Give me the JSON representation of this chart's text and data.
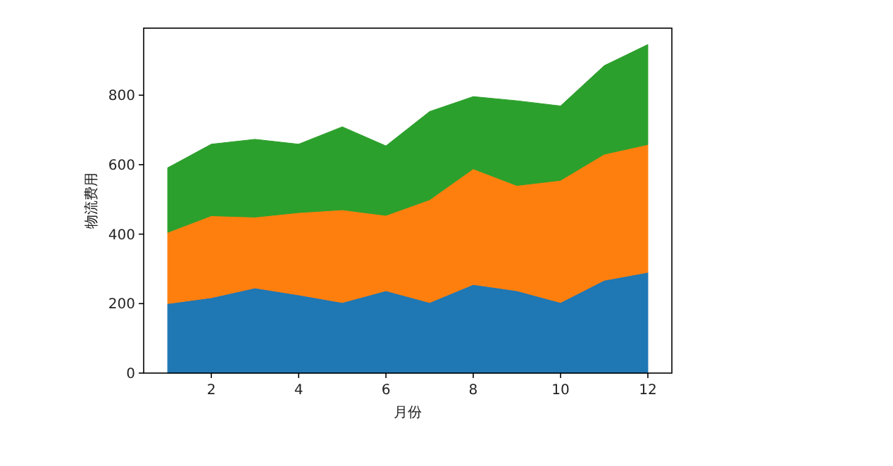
{
  "chart_data": {
    "type": "area",
    "stacked": true,
    "xlabel": "月份",
    "ylabel": "物流费用",
    "x": [
      1,
      2,
      3,
      4,
      5,
      6,
      7,
      8,
      9,
      10,
      11,
      12
    ],
    "series": [
      {
        "color": "#1f77b4",
        "values": [
          200,
          217,
          245,
          225,
          203,
          237,
          203,
          255,
          237,
          203,
          267,
          290
        ]
      },
      {
        "color": "#ff7f0e",
        "values": [
          205,
          236,
          204,
          237,
          267,
          217,
          296,
          333,
          303,
          352,
          363,
          368
        ]
      },
      {
        "color": "#2ca02c",
        "values": [
          186,
          206,
          224,
          197,
          239,
          200,
          254,
          208,
          244,
          214,
          255,
          288
        ]
      }
    ],
    "xlim": [
      0.45,
      12.55
    ],
    "ylim": [
      0,
      993
    ],
    "xticks": [
      2,
      4,
      6,
      8,
      10,
      12
    ],
    "yticks": [
      0,
      200,
      400,
      600,
      800
    ]
  }
}
